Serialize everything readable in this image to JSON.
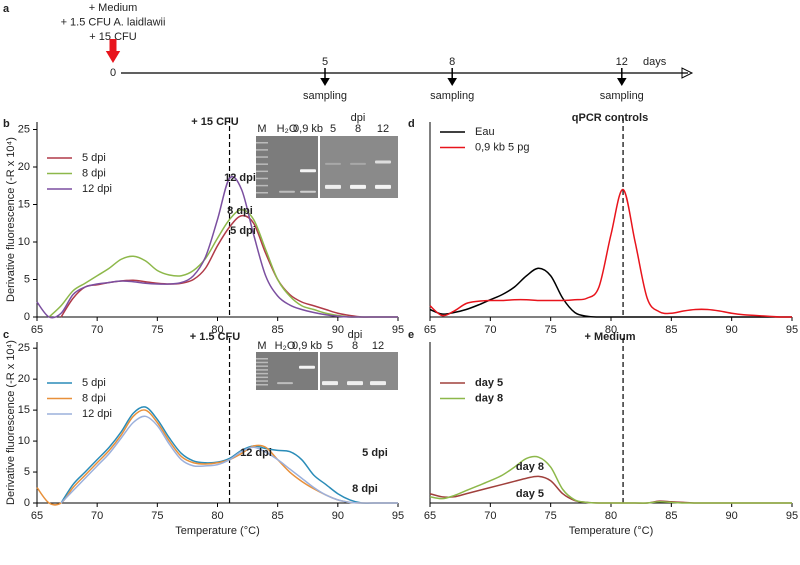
{
  "chart_data": [
    {
      "type": "timeline",
      "label": "a",
      "treatments": [
        "+ Medium",
        "+ 1.5 CFU A. laidlawii",
        "+ 15 CFU"
      ],
      "start": 0,
      "sampling_days": [
        5,
        8,
        12
      ],
      "unit": "days",
      "event_label": "sampling"
    },
    {
      "type": "line",
      "label": "b",
      "title": "+ 15 CFU",
      "ylabel": "Derivative fluorescence (-R x 10⁴)",
      "x": [
        65,
        66,
        67,
        68,
        69,
        70,
        71,
        72,
        73,
        74,
        75,
        76,
        77,
        78,
        79,
        80,
        81,
        82,
        83,
        84,
        85,
        86,
        87,
        88,
        89,
        90,
        91,
        92,
        93,
        94,
        95
      ],
      "series": [
        {
          "name": "5 dpi",
          "color": "#b03a48",
          "values": [
            null,
            null,
            0,
            2.5,
            4,
            4.3,
            4.6,
            4.8,
            4.9,
            4.7,
            4.5,
            4.4,
            4.5,
            5,
            6.5,
            9.5,
            12,
            13.5,
            12.5,
            8.5,
            5,
            3,
            2,
            1.5,
            1,
            0.5,
            0.2,
            0,
            0,
            0,
            0
          ]
        },
        {
          "name": "8 dpi",
          "color": "#8db84a",
          "values": [
            null,
            0,
            1.5,
            3.5,
            4.5,
            5.5,
            6.5,
            7.7,
            8.1,
            7.5,
            6.2,
            5.6,
            5.5,
            6.2,
            7.8,
            10.5,
            13,
            14.3,
            13,
            9,
            5,
            2.8,
            1.5,
            1,
            0.5,
            0.2,
            0,
            0,
            0,
            0,
            0
          ]
        },
        {
          "name": "12 dpi",
          "color": "#7b4fa0",
          "values": [
            2,
            0,
            0.5,
            3,
            4,
            4.4,
            4.6,
            4.8,
            4.7,
            4.5,
            4.4,
            4.4,
            4.6,
            5.5,
            8,
            13,
            18.5,
            17,
            11,
            5.5,
            2.8,
            1.6,
            1,
            0.6,
            0.3,
            0.1,
            0,
            0,
            0,
            0,
            0
          ]
        }
      ],
      "annotations": [
        "12 dpi",
        "8 dpi",
        "5 dpi"
      ],
      "gel": {
        "lanes": [
          "M",
          "H₂O",
          "0,9 kb",
          "5",
          "8",
          "12"
        ],
        "group_label": "dpi"
      },
      "xlim": [
        65,
        95
      ],
      "xticks": [
        65,
        70,
        75,
        80,
        85,
        90,
        95
      ],
      "ylim": [
        0,
        26
      ],
      "yticks": [
        0,
        5,
        10,
        15,
        20,
        25
      ],
      "vline": 81,
      "legend": "upper left"
    },
    {
      "type": "line",
      "label": "c",
      "title": "+ 1.5 CFU",
      "ylabel": "Derivative fluorescence (-R x 10⁴)",
      "xlabel": "Temperature (°C)",
      "x": [
        65,
        66,
        67,
        68,
        69,
        70,
        71,
        72,
        73,
        74,
        75,
        76,
        77,
        78,
        79,
        80,
        81,
        82,
        83,
        84,
        85,
        86,
        87,
        88,
        89,
        90,
        91,
        92,
        93,
        94,
        95
      ],
      "series": [
        {
          "name": "5 dpi",
          "color": "#2a8cb8",
          "values": [
            null,
            null,
            0,
            3,
            5,
            7,
            9,
            11.5,
            14.5,
            15.5,
            13.5,
            10.5,
            8,
            6.8,
            6.5,
            6.6,
            7.2,
            8.5,
            9.2,
            8.8,
            8.5,
            8.3,
            7,
            4.5,
            3,
            1.5,
            0.5,
            0,
            0,
            0,
            0
          ]
        },
        {
          "name": "8 dpi",
          "color": "#e8903a",
          "values": [
            2.5,
            0,
            0,
            2.5,
            4.5,
            6.5,
            8.5,
            11,
            14,
            15,
            13,
            10,
            7.5,
            6.5,
            6.3,
            6.5,
            7,
            8,
            9.2,
            9,
            7,
            5,
            3.5,
            2.3,
            1.3,
            0.5,
            0.1,
            0,
            0,
            0,
            0
          ]
        },
        {
          "name": "12 dpi",
          "color": "#9bb0dc",
          "values": [
            null,
            null,
            0,
            2,
            4,
            6,
            8,
            10.5,
            13,
            14,
            12.5,
            9.5,
            7,
            6,
            6,
            6.2,
            7,
            8.3,
            9,
            8.2,
            7,
            5.5,
            4,
            2.5,
            1.3,
            0.5,
            0.1,
            0,
            0,
            0,
            0
          ]
        }
      ],
      "annotations": [
        "5 dpi",
        "12 dpi",
        "8 dpi"
      ],
      "gel": {
        "lanes": [
          "M",
          "H₂O",
          "0,9 kb",
          "5",
          "8",
          "12"
        ],
        "group_label": "dpi"
      },
      "xlim": [
        65,
        95
      ],
      "xticks": [
        65,
        70,
        75,
        80,
        85,
        90,
        95
      ],
      "ylim": [
        0,
        26
      ],
      "yticks": [
        0,
        5,
        10,
        15,
        20,
        25
      ],
      "vline": 81,
      "legend": "upper left"
    },
    {
      "type": "line",
      "label": "d",
      "title": "qPCR controls",
      "x": [
        65,
        66,
        67,
        68,
        69,
        70,
        71,
        72,
        73,
        74,
        75,
        76,
        77,
        78,
        79,
        80,
        81,
        82,
        83,
        84,
        85,
        86,
        87,
        88,
        89,
        90,
        91,
        92,
        93,
        94,
        95
      ],
      "series": [
        {
          "name": "Eau",
          "color": "#000000",
          "values": [
            1,
            0.4,
            0.6,
            1,
            1.6,
            2.3,
            3,
            4,
            5.5,
            6.5,
            5.5,
            2.5,
            0.6,
            0.1,
            0,
            0,
            0,
            0,
            0,
            0,
            0,
            0,
            0,
            0,
            0,
            0,
            0,
            0,
            0,
            0,
            0
          ]
        },
        {
          "name": "0,9 kb 5 pg",
          "color": "#e8141c",
          "values": [
            1.5,
            0.2,
            0.8,
            1.8,
            2.1,
            2.2,
            2.2,
            2.3,
            2.3,
            2.2,
            2.2,
            2.2,
            2.3,
            2.5,
            4,
            11,
            17,
            10,
            2.5,
            0.7,
            0.5,
            0.8,
            1,
            1,
            0.8,
            0.5,
            0.3,
            0.2,
            0.1,
            0,
            0
          ]
        }
      ],
      "xlim": [
        65,
        95
      ],
      "xticks": [
        65,
        70,
        75,
        80,
        85,
        90,
        95
      ],
      "ylim": [
        0,
        26
      ],
      "vline": 81,
      "legend": "upper left"
    },
    {
      "type": "line",
      "label": "e",
      "title": "+ Medium",
      "xlabel": "Temperature (°C)",
      "x": [
        65,
        66,
        67,
        68,
        69,
        70,
        71,
        72,
        73,
        74,
        75,
        76,
        77,
        78,
        79,
        80,
        81,
        82,
        83,
        84,
        85,
        86,
        87,
        88,
        89,
        90,
        91,
        92,
        93,
        94,
        95
      ],
      "series": [
        {
          "name": "day 5",
          "color": "#a0403c",
          "values": [
            1.5,
            1,
            1,
            1.5,
            2,
            2.5,
            3,
            3.5,
            4,
            4.3,
            3.6,
            1.5,
            0.4,
            0.1,
            0,
            0,
            0,
            0,
            0,
            0.3,
            0.2,
            0.1,
            0,
            0,
            0,
            0,
            0,
            0,
            0,
            0,
            0
          ]
        },
        {
          "name": "day 8",
          "color": "#8db84a",
          "values": [
            1,
            0.7,
            1.2,
            2,
            2.8,
            3.6,
            4.5,
            5.8,
            7.2,
            7.4,
            5.8,
            2.2,
            0.5,
            0.1,
            0,
            0,
            0,
            0,
            0,
            0.2,
            0.1,
            0,
            0,
            0,
            0,
            0,
            0,
            0,
            0,
            0,
            0
          ]
        }
      ],
      "annotations": [
        "day 8",
        "day 5"
      ],
      "xlim": [
        65,
        95
      ],
      "xticks": [
        65,
        70,
        75,
        80,
        85,
        90,
        95
      ],
      "ylim": [
        0,
        26
      ],
      "vline": 81,
      "legend": "upper left"
    }
  ]
}
